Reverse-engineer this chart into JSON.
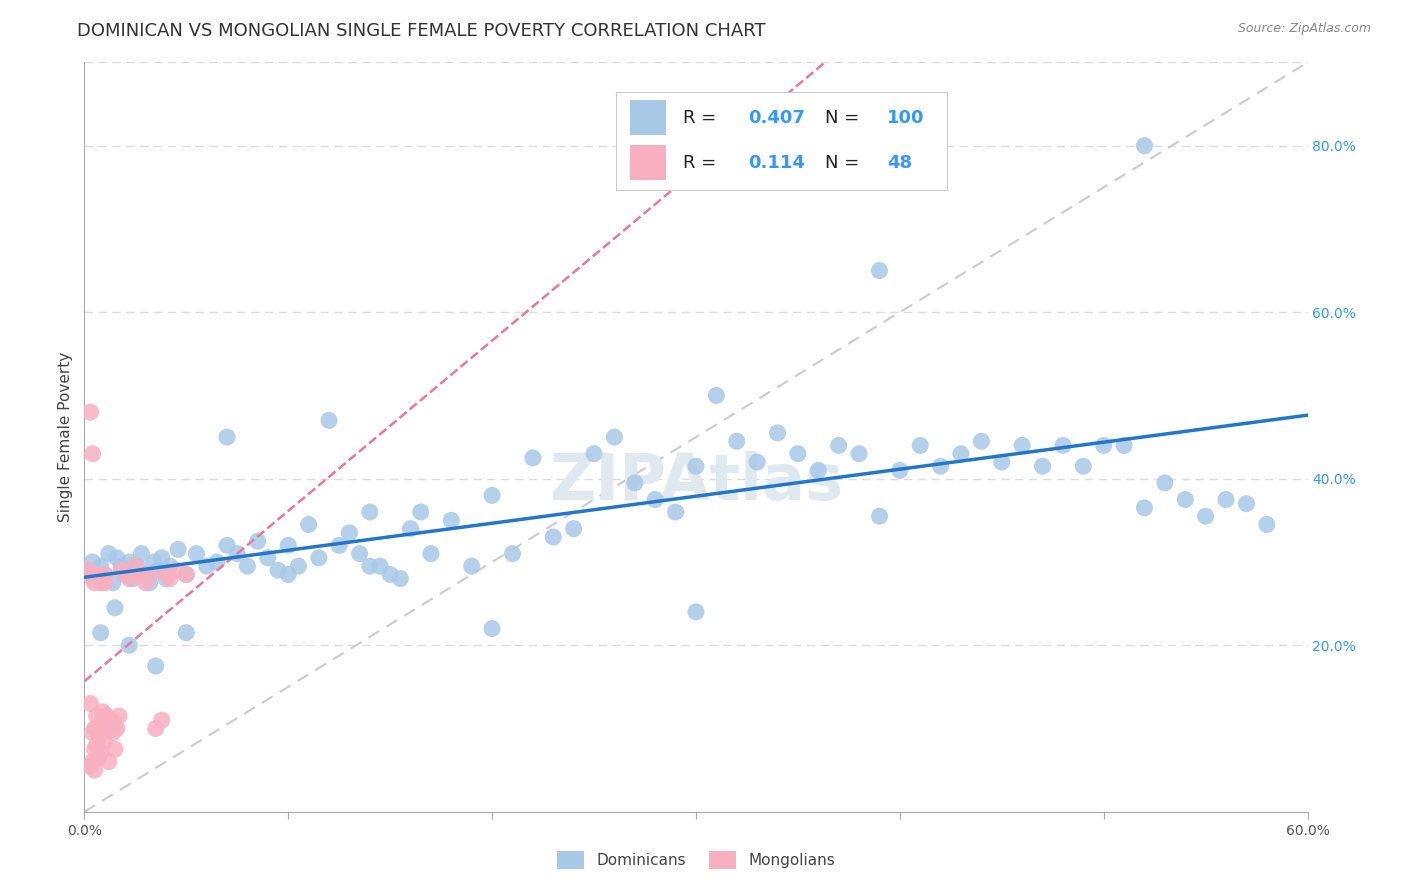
{
  "title": "DOMINICAN VS MONGOLIAN SINGLE FEMALE POVERTY CORRELATION CHART",
  "source": "Source: ZipAtlas.com",
  "ylabel": "Single Female Poverty",
  "watermark": "ZIPAtlas",
  "xlim": [
    0.0,
    0.6
  ],
  "ylim": [
    0.0,
    0.9
  ],
  "x_tick_positions": [
    0.0,
    0.1,
    0.2,
    0.3,
    0.4,
    0.5,
    0.6
  ],
  "x_tick_labels": [
    "0.0%",
    "",
    "",
    "",
    "",
    "",
    "60.0%"
  ],
  "y_tick_positions": [
    0.2,
    0.4,
    0.6,
    0.8
  ],
  "y_tick_labels": [
    "20.0%",
    "40.0%",
    "60.0%",
    "80.0%"
  ],
  "dominican_color": "#a8c8e8",
  "mongolian_color": "#f8b0c0",
  "regression_line_color": "#2277cc",
  "mongolian_reg_color": "#ee7799",
  "diagonal_color": "#cccccc",
  "value_color": "#3399ff",
  "R_dominican": 0.407,
  "N_dominican": 100,
  "R_mongolian": 0.114,
  "N_mongolian": 48,
  "background_color": "#ffffff",
  "grid_color": "#dddddd",
  "title_fontsize": 13,
  "axis_label_fontsize": 11,
  "tick_fontsize": 10,
  "legend_fontsize": 12,
  "dominican_x": [
    0.002,
    0.004,
    0.006,
    0.008,
    0.01,
    0.012,
    0.014,
    0.016,
    0.018,
    0.02,
    0.022,
    0.024,
    0.026,
    0.028,
    0.03,
    0.032,
    0.034,
    0.036,
    0.038,
    0.04,
    0.042,
    0.046,
    0.05,
    0.055,
    0.06,
    0.065,
    0.07,
    0.075,
    0.08,
    0.085,
    0.09,
    0.095,
    0.1,
    0.105,
    0.11,
    0.115,
    0.12,
    0.125,
    0.13,
    0.135,
    0.14,
    0.145,
    0.15,
    0.155,
    0.16,
    0.165,
    0.17,
    0.18,
    0.19,
    0.2,
    0.21,
    0.22,
    0.23,
    0.24,
    0.25,
    0.26,
    0.27,
    0.28,
    0.29,
    0.3,
    0.31,
    0.32,
    0.33,
    0.34,
    0.35,
    0.36,
    0.37,
    0.38,
    0.39,
    0.4,
    0.41,
    0.42,
    0.43,
    0.44,
    0.45,
    0.46,
    0.47,
    0.48,
    0.49,
    0.5,
    0.51,
    0.52,
    0.53,
    0.54,
    0.55,
    0.56,
    0.57,
    0.58,
    0.008,
    0.015,
    0.022,
    0.035,
    0.05,
    0.07,
    0.1,
    0.14,
    0.2,
    0.3,
    0.39,
    0.52
  ],
  "dominican_y": [
    0.29,
    0.3,
    0.28,
    0.295,
    0.285,
    0.31,
    0.275,
    0.305,
    0.295,
    0.285,
    0.3,
    0.28,
    0.295,
    0.31,
    0.285,
    0.275,
    0.3,
    0.29,
    0.305,
    0.28,
    0.295,
    0.315,
    0.285,
    0.31,
    0.295,
    0.3,
    0.45,
    0.31,
    0.295,
    0.325,
    0.305,
    0.29,
    0.32,
    0.295,
    0.345,
    0.305,
    0.47,
    0.32,
    0.335,
    0.31,
    0.36,
    0.295,
    0.285,
    0.28,
    0.34,
    0.36,
    0.31,
    0.35,
    0.295,
    0.38,
    0.31,
    0.425,
    0.33,
    0.34,
    0.43,
    0.45,
    0.395,
    0.375,
    0.36,
    0.415,
    0.5,
    0.445,
    0.42,
    0.455,
    0.43,
    0.41,
    0.44,
    0.43,
    0.355,
    0.41,
    0.44,
    0.415,
    0.43,
    0.445,
    0.42,
    0.44,
    0.415,
    0.44,
    0.415,
    0.44,
    0.44,
    0.365,
    0.395,
    0.375,
    0.355,
    0.375,
    0.37,
    0.345,
    0.215,
    0.245,
    0.2,
    0.175,
    0.215,
    0.32,
    0.285,
    0.295,
    0.22,
    0.24,
    0.65,
    0.8
  ],
  "mongolian_x": [
    0.002,
    0.003,
    0.003,
    0.004,
    0.004,
    0.005,
    0.005,
    0.006,
    0.006,
    0.007,
    0.007,
    0.008,
    0.008,
    0.009,
    0.01,
    0.01,
    0.011,
    0.012,
    0.013,
    0.014,
    0.015,
    0.016,
    0.017,
    0.018,
    0.02,
    0.022,
    0.025,
    0.028,
    0.03,
    0.032,
    0.035,
    0.038,
    0.04,
    0.042,
    0.045,
    0.05,
    0.003,
    0.004,
    0.005,
    0.006,
    0.007,
    0.008,
    0.01,
    0.012,
    0.015,
    0.003,
    0.004,
    0.005
  ],
  "mongolian_y": [
    0.29,
    0.13,
    0.285,
    0.095,
    0.28,
    0.1,
    0.275,
    0.115,
    0.285,
    0.09,
    0.28,
    0.105,
    0.275,
    0.12,
    0.285,
    0.275,
    0.115,
    0.1,
    0.11,
    0.095,
    0.105,
    0.1,
    0.115,
    0.29,
    0.285,
    0.28,
    0.295,
    0.285,
    0.275,
    0.285,
    0.1,
    0.11,
    0.285,
    0.28,
    0.29,
    0.285,
    0.48,
    0.43,
    0.075,
    0.08,
    0.065,
    0.07,
    0.085,
    0.06,
    0.075,
    0.055,
    0.06,
    0.05
  ]
}
